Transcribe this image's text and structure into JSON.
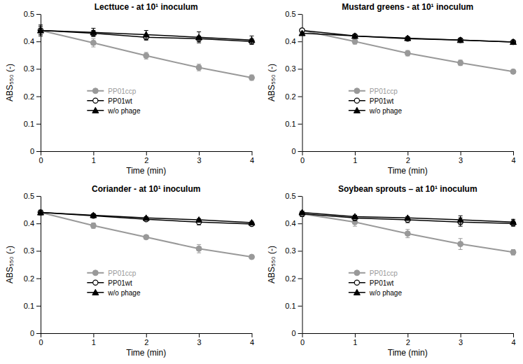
{
  "chart_data": [
    {
      "type": "line",
      "title": "Lecttuce - at 10¹ inoculum",
      "x_label": "Time (min)",
      "y_label": "ABS₅₅₀ (-)",
      "x": [
        0,
        1,
        2,
        3,
        4
      ],
      "xlim": [
        0,
        4
      ],
      "xticks": [
        0,
        1,
        2,
        3,
        4
      ],
      "ylim": [
        0,
        0.5
      ],
      "yticks": [
        0,
        0.1,
        0.2,
        0.3,
        0.4,
        0.5
      ],
      "grid": false,
      "legend": "left",
      "series": [
        {
          "name": "PP01ccp",
          "color": "#999999",
          "marker": "circle",
          "values": [
            0.44,
            0.395,
            0.348,
            0.305,
            0.268
          ],
          "errors": [
            0.01,
            0.015,
            0.012,
            0.012,
            0.01
          ]
        },
        {
          "name": "PP01wt",
          "color": "#000000",
          "marker": "open-circle",
          "values": [
            0.44,
            0.43,
            0.415,
            0.41,
            0.4
          ],
          "errors": [
            0.02,
            0.01,
            0.01,
            0.01,
            0.01
          ]
        },
        {
          "name": "w/o phage",
          "color": "#000000",
          "marker": "triangle",
          "values": [
            0.44,
            0.433,
            0.425,
            0.415,
            0.405
          ],
          "errors": [
            0.015,
            0.015,
            0.015,
            0.02,
            0.015
          ]
        }
      ]
    },
    {
      "type": "line",
      "title": "Mustard greens - at 10¹ inoculum",
      "x_label": "Time (min)",
      "y_label": "ABS₅₅₀ (-)",
      "x": [
        0,
        1,
        2,
        3,
        4
      ],
      "xlim": [
        0,
        4
      ],
      "xticks": [
        0,
        1,
        2,
        3,
        4
      ],
      "ylim": [
        0,
        0.5
      ],
      "yticks": [
        0,
        0.1,
        0.2,
        0.3,
        0.4,
        0.5
      ],
      "grid": false,
      "legend": "left",
      "series": [
        {
          "name": "PP01ccp",
          "color": "#999999",
          "marker": "circle",
          "values": [
            0.44,
            0.4,
            0.357,
            0.322,
            0.29
          ],
          "errors": [
            0.005,
            0.01,
            0.01,
            0.01,
            0.005
          ]
        },
        {
          "name": "PP01wt",
          "color": "#000000",
          "marker": "open-circle",
          "values": [
            0.44,
            0.42,
            0.41,
            0.405,
            0.398
          ],
          "errors": [
            0.005,
            0.005,
            0.005,
            0.005,
            0.005
          ]
        },
        {
          "name": "w/o phage",
          "color": "#000000",
          "marker": "triangle",
          "values": [
            0.43,
            0.42,
            0.412,
            0.405,
            0.398
          ],
          "errors": [
            0.005,
            0.005,
            0.005,
            0.005,
            0.005
          ]
        }
      ]
    },
    {
      "type": "line",
      "title": "Coriander - at 10¹ inoculum",
      "x_label": "Time (min)",
      "y_label": "ABS₅₅₀ (-)",
      "x": [
        0,
        1,
        2,
        3,
        4
      ],
      "xlim": [
        0,
        4
      ],
      "xticks": [
        0,
        1,
        2,
        3,
        4
      ],
      "ylim": [
        0,
        0.5
      ],
      "yticks": [
        0,
        0.1,
        0.2,
        0.3,
        0.4,
        0.5
      ],
      "grid": false,
      "legend": "left",
      "series": [
        {
          "name": "PP01ccp",
          "color": "#999999",
          "marker": "circle",
          "values": [
            0.44,
            0.392,
            0.35,
            0.308,
            0.278
          ],
          "errors": [
            0.01,
            0.01,
            0.005,
            0.015,
            0.005
          ]
        },
        {
          "name": "PP01wt",
          "color": "#000000",
          "marker": "open-circle",
          "values": [
            0.44,
            0.428,
            0.415,
            0.405,
            0.398
          ],
          "errors": [
            0.005,
            0.005,
            0.005,
            0.01,
            0.005
          ]
        },
        {
          "name": "w/o phage",
          "color": "#000000",
          "marker": "triangle",
          "values": [
            0.44,
            0.43,
            0.42,
            0.413,
            0.403
          ],
          "errors": [
            0.005,
            0.005,
            0.005,
            0.005,
            0.005
          ]
        }
      ]
    },
    {
      "type": "line",
      "title": "Soybean sprouts – at 10¹ inoculum",
      "x_label": "Time (min)",
      "y_label": "ABS₅₅₀ (-)",
      "x": [
        0,
        1,
        2,
        3,
        4
      ],
      "xlim": [
        0,
        4
      ],
      "xticks": [
        0,
        1,
        2,
        3,
        4
      ],
      "ylim": [
        0,
        0.5
      ],
      "yticks": [
        0,
        0.1,
        0.2,
        0.3,
        0.4,
        0.5
      ],
      "grid": false,
      "legend": "left",
      "series": [
        {
          "name": "PP01ccp",
          "color": "#999999",
          "marker": "circle",
          "values": [
            0.435,
            0.405,
            0.363,
            0.325,
            0.295
          ],
          "errors": [
            0.005,
            0.015,
            0.015,
            0.02,
            0.01
          ]
        },
        {
          "name": "PP01wt",
          "color": "#000000",
          "marker": "open-circle",
          "values": [
            0.435,
            0.42,
            0.413,
            0.405,
            0.4
          ],
          "errors": [
            0.01,
            0.01,
            0.01,
            0.015,
            0.01
          ]
        },
        {
          "name": "w/o phage",
          "color": "#000000",
          "marker": "triangle",
          "values": [
            0.44,
            0.425,
            0.42,
            0.413,
            0.405
          ],
          "errors": [
            0.005,
            0.005,
            0.005,
            0.015,
            0.01
          ]
        }
      ]
    }
  ]
}
